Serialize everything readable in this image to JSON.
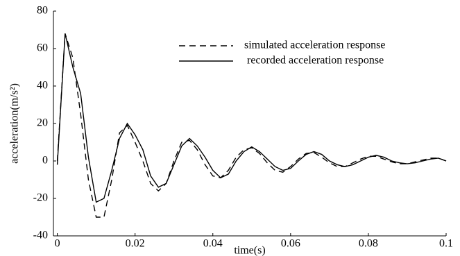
{
  "chart_data": {
    "type": "line",
    "x": [
      0,
      0.002,
      0.004,
      0.006,
      0.008,
      0.01,
      0.012,
      0.014,
      0.016,
      0.018,
      0.02,
      0.022,
      0.024,
      0.026,
      0.028,
      0.03,
      0.032,
      0.034,
      0.036,
      0.038,
      0.04,
      0.042,
      0.044,
      0.046,
      0.048,
      0.05,
      0.052,
      0.054,
      0.056,
      0.058,
      0.06,
      0.062,
      0.064,
      0.066,
      0.068,
      0.07,
      0.072,
      0.074,
      0.076,
      0.078,
      0.08,
      0.082,
      0.084,
      0.086,
      0.088,
      0.09,
      0.092,
      0.094,
      0.096,
      0.098,
      0.1
    ],
    "series": [
      {
        "name": "simulated acceleration response",
        "color": "#000000",
        "dash": true,
        "values": [
          0,
          68,
          55,
          25,
          -10,
          -30,
          -30,
          -10,
          15,
          19,
          10,
          0,
          -12,
          -16,
          -12,
          0,
          10,
          11,
          6,
          -2,
          -8,
          -9,
          -5,
          2,
          6,
          7,
          4,
          -1,
          -5,
          -6,
          -3,
          1,
          4,
          4.5,
          2,
          -1,
          -3,
          -3,
          -1,
          1,
          2.5,
          2.5,
          1,
          -0.5,
          -1.5,
          -1.5,
          -0.5,
          0.5,
          1.5,
          1.5,
          0
        ]
      },
      {
        "name": "recorded acceleration response",
        "color": "#000000",
        "dash": false,
        "values": [
          -2,
          68,
          50,
          36,
          2,
          -22,
          -20,
          -5,
          12,
          20,
          14,
          6,
          -8,
          -14,
          -12,
          -2,
          8,
          12,
          8,
          2,
          -5,
          -9,
          -7,
          0,
          5,
          7.5,
          5,
          1,
          -3,
          -5,
          -4,
          0,
          3.5,
          5,
          3.5,
          0,
          -2,
          -3,
          -2,
          0,
          2,
          3,
          2,
          0,
          -1,
          -1.5,
          -1,
          0,
          1,
          1.5,
          0
        ]
      }
    ],
    "x_label": "time(s)",
    "y_label": "acceleration(m/s²)",
    "xlim": [
      -0.001,
      0.1
    ],
    "xticks": [
      0,
      0.02,
      0.04,
      0.06,
      0.08,
      0.1
    ],
    "ylim": [
      -40,
      80
    ],
    "yticks": [
      -40,
      -20,
      0,
      20,
      40,
      60,
      80
    ],
    "grid": false,
    "legend": "upper right"
  }
}
